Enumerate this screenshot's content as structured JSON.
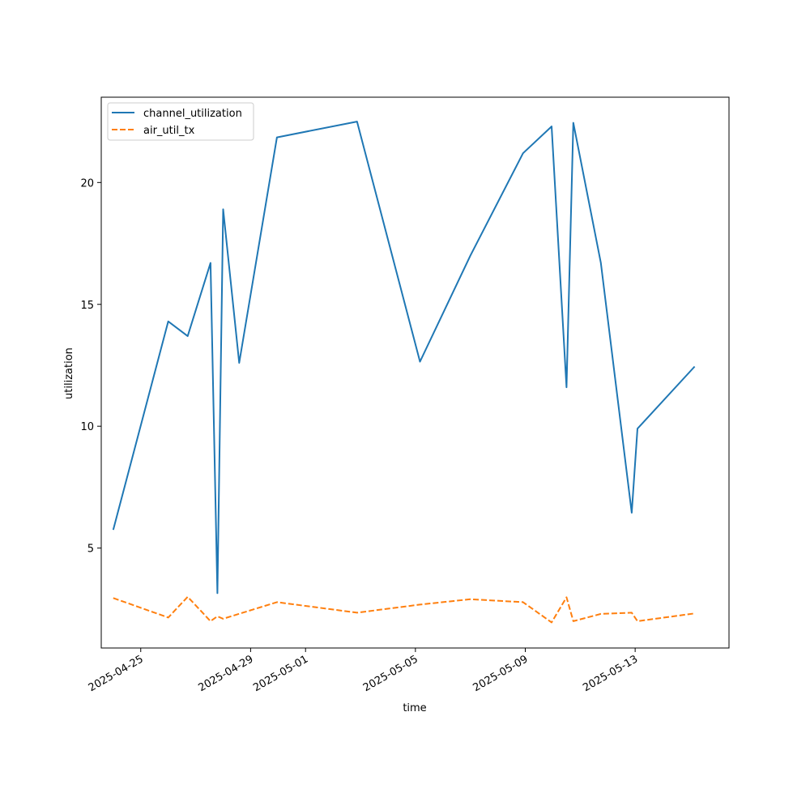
{
  "chart_data": {
    "type": "line",
    "title": "",
    "xlabel": "time",
    "ylabel": "utilization",
    "x_ticks": [
      "2025-04-25",
      "2025-04-29",
      "2025-05-01",
      "2025-05-05",
      "2025-05-09",
      "2025-05-13"
    ],
    "y_ticks": [
      5,
      10,
      15,
      20
    ],
    "xlim": [
      "2025-04-23T13:30",
      "2025-05-16T10:00"
    ],
    "ylim": [
      0.9,
      23.5
    ],
    "grid": false,
    "legend_position": "upper-left",
    "series": [
      {
        "name": "channel_utilization",
        "color": "#1f77b4",
        "style": "solid",
        "points": [
          {
            "x": "2025-04-24T00:00",
            "y": 5.75
          },
          {
            "x": "2025-04-26T00:00",
            "y": 14.3
          },
          {
            "x": "2025-04-26T17:00",
            "y": 13.7
          },
          {
            "x": "2025-04-27T13:00",
            "y": 16.7
          },
          {
            "x": "2025-04-27T19:00",
            "y": 3.15
          },
          {
            "x": "2025-04-28T00:00",
            "y": 18.9
          },
          {
            "x": "2025-04-28T14:00",
            "y": 12.6
          },
          {
            "x": "2025-04-29T23:00",
            "y": 21.85
          },
          {
            "x": "2025-05-02T21:00",
            "y": 22.5
          },
          {
            "x": "2025-05-05T04:00",
            "y": 12.65
          },
          {
            "x": "2025-05-07T00:00",
            "y": 17.0
          },
          {
            "x": "2025-05-08T22:00",
            "y": 21.2
          },
          {
            "x": "2025-05-09T23:00",
            "y": 22.3
          },
          {
            "x": "2025-05-10T12:00",
            "y": 11.6
          },
          {
            "x": "2025-05-10T18:00",
            "y": 22.45
          },
          {
            "x": "2025-05-11T18:00",
            "y": 16.7
          },
          {
            "x": "2025-05-12T21:00",
            "y": 6.45
          },
          {
            "x": "2025-05-13T02:00",
            "y": 9.9
          },
          {
            "x": "2025-05-15T04:00",
            "y": 12.45
          }
        ]
      },
      {
        "name": "air_util_tx",
        "color": "#ff7f0e",
        "style": "dashed",
        "points": [
          {
            "x": "2025-04-24T00:00",
            "y": 2.95
          },
          {
            "x": "2025-04-26T00:00",
            "y": 2.15
          },
          {
            "x": "2025-04-26T17:00",
            "y": 3.0
          },
          {
            "x": "2025-04-27T13:00",
            "y": 2.0
          },
          {
            "x": "2025-04-27T19:00",
            "y": 2.2
          },
          {
            "x": "2025-04-28T00:00",
            "y": 2.1
          },
          {
            "x": "2025-04-29T23:00",
            "y": 2.78
          },
          {
            "x": "2025-05-02T21:00",
            "y": 2.35
          },
          {
            "x": "2025-05-05T04:00",
            "y": 2.68
          },
          {
            "x": "2025-05-07T00:00",
            "y": 2.9
          },
          {
            "x": "2025-05-08T22:00",
            "y": 2.78
          },
          {
            "x": "2025-05-09T23:00",
            "y": 1.95
          },
          {
            "x": "2025-05-10T12:00",
            "y": 2.98
          },
          {
            "x": "2025-05-10T18:00",
            "y": 2.0
          },
          {
            "x": "2025-05-11T18:00",
            "y": 2.3
          },
          {
            "x": "2025-05-12T21:00",
            "y": 2.35
          },
          {
            "x": "2025-05-13T02:00",
            "y": 2.0
          },
          {
            "x": "2025-05-15T04:00",
            "y": 2.32
          }
        ]
      }
    ]
  }
}
